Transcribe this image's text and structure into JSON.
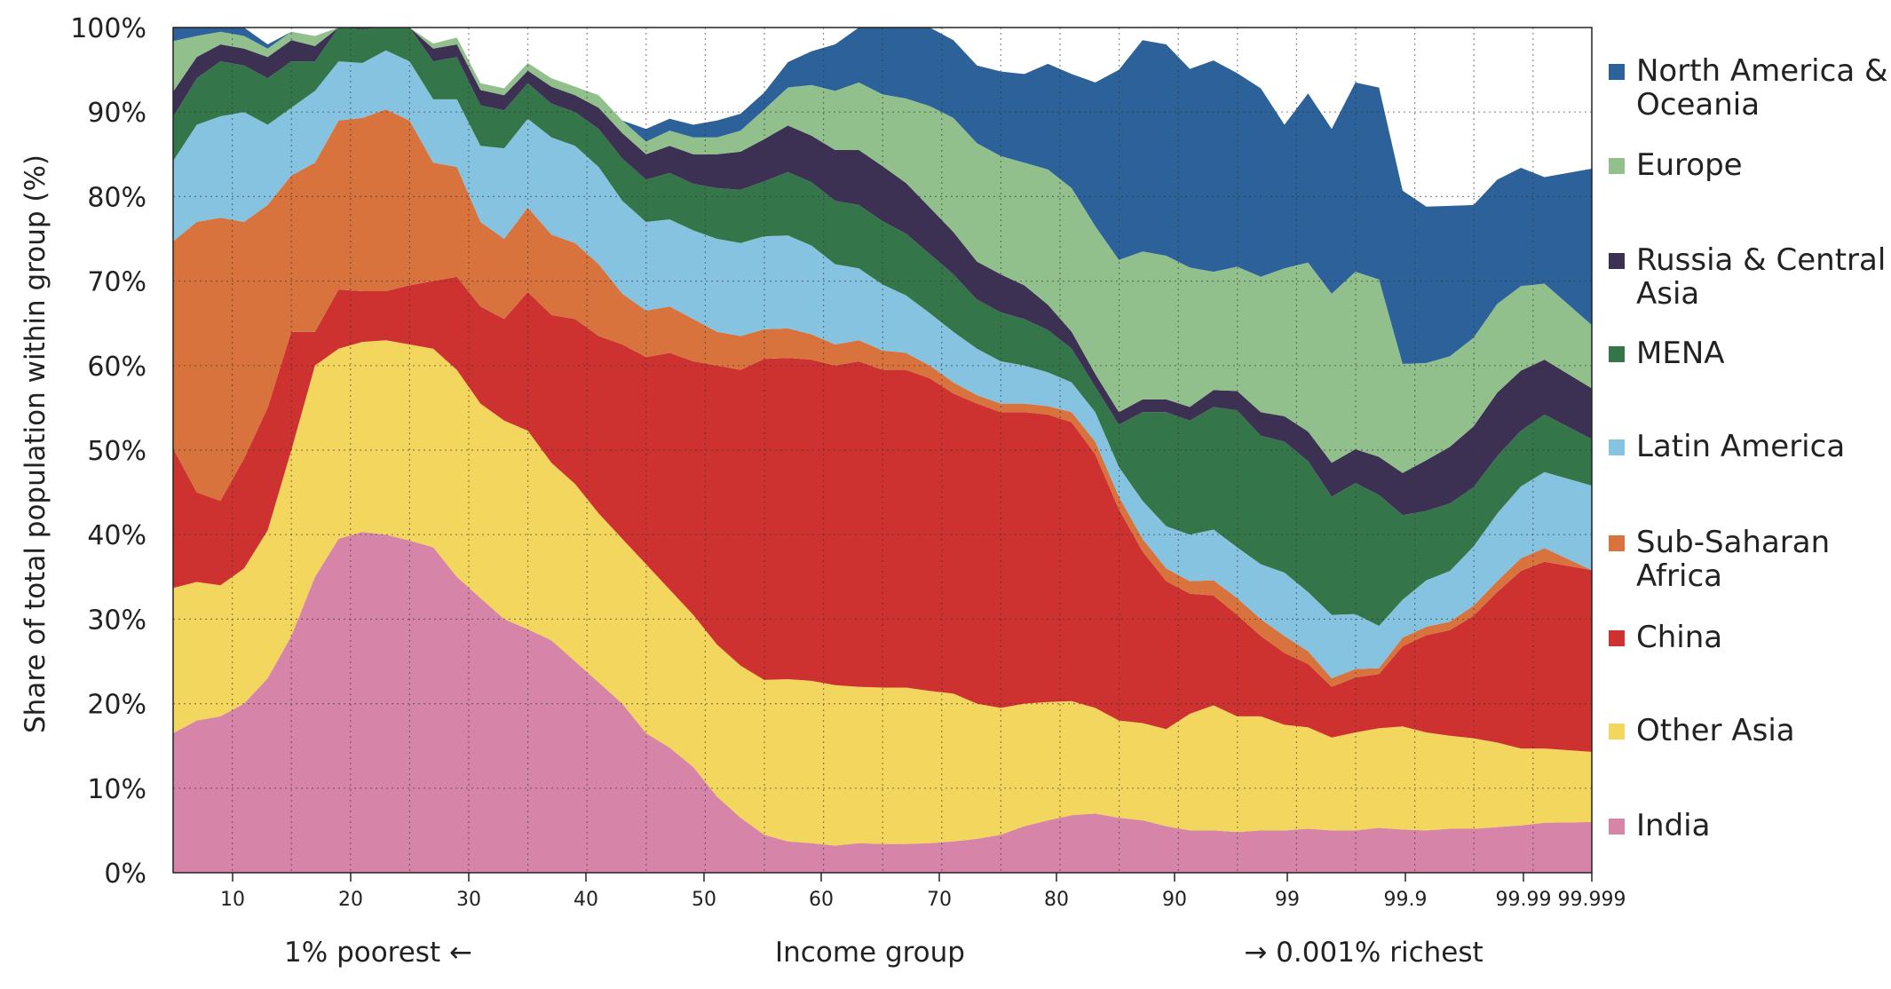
{
  "chart_data": {
    "type": "area",
    "stacked": true,
    "ylabel": "Share of total population within group (%)",
    "xlabel": "Income group",
    "x_left_note": "1% poorest ←",
    "x_right_note": "→ 0.001% richest",
    "ylim": [
      0,
      100
    ],
    "y_ticks": [
      "0%",
      "10%",
      "20%",
      "30%",
      "40%",
      "50%",
      "60%",
      "70%",
      "80%",
      "90%",
      "100%"
    ],
    "x_tick_labels": [
      "10",
      "20",
      "30",
      "40",
      "50",
      "60",
      "70",
      "80",
      "90",
      "99",
      "99.9",
      "99.99",
      "99.999"
    ],
    "grid": true,
    "legend_position": "right",
    "x_index": [
      5,
      7,
      9,
      11,
      13,
      15,
      17,
      19,
      21,
      23,
      25,
      27,
      29,
      31,
      33,
      35,
      37,
      39,
      41,
      43,
      45,
      47,
      49,
      51,
      53,
      55,
      57,
      59,
      61,
      63,
      65,
      67,
      69,
      71,
      73,
      75,
      77,
      79,
      81,
      83,
      85,
      87,
      89,
      91,
      93,
      95,
      97,
      99,
      101,
      103,
      105,
      107,
      109,
      111,
      113,
      115,
      117,
      119,
      121,
      125
    ],
    "series": [
      {
        "name": "India",
        "color": "#d685a9",
        "values": [
          16.5,
          18,
          18.5,
          20,
          23,
          28,
          35,
          39.5,
          40.3,
          40,
          39.3,
          38.5,
          35,
          32.5,
          30,
          28.8,
          27.5,
          25,
          22.5,
          20,
          16.5,
          14.8,
          12.5,
          9,
          6.5,
          4.5,
          3.7,
          3.5,
          3.2,
          3.5,
          3.4,
          3.4,
          3.5,
          3.7,
          4,
          4.5,
          5.5,
          6.2,
          6.8,
          7,
          6.5,
          6.2,
          5.5,
          5,
          5,
          4.8,
          5,
          5,
          5.2,
          5,
          5,
          5.3,
          5.1,
          5,
          5.2,
          5.2,
          5.4,
          5.6,
          5.9,
          6
        ]
      },
      {
        "name": "Other Asia",
        "color": "#f3d65d",
        "values": [
          17.2,
          16.4,
          15.5,
          16,
          17.5,
          22,
          25,
          22.5,
          22.5,
          23,
          23.2,
          23.5,
          24.5,
          23,
          23.5,
          23.5,
          21,
          21,
          20,
          19.5,
          20,
          18.7,
          18,
          18,
          18,
          18.3,
          19.2,
          19.2,
          19,
          18.5,
          18.5,
          18.5,
          18,
          17.5,
          16,
          15,
          14.5,
          14,
          13.5,
          12.5,
          11.5,
          11.5,
          11.5,
          13.8,
          14.8,
          13.7,
          13.5,
          12.5,
          12,
          11,
          11.6,
          11.8,
          12.2,
          11.6,
          11,
          10.7,
          10,
          9.1,
          8.8,
          8.3
        ]
      },
      {
        "name": "China",
        "color": "#cd3230",
        "values": [
          16.5,
          10.6,
          10,
          13,
          14.5,
          14,
          4,
          7,
          6,
          5.8,
          7,
          8,
          11,
          11.5,
          12,
          16.4,
          17.5,
          19.5,
          21,
          23,
          24.5,
          28,
          30,
          33,
          35,
          38,
          38,
          38,
          37.8,
          38.5,
          37.6,
          37.6,
          37,
          35.5,
          35.5,
          35,
          34.5,
          34,
          33,
          30,
          25,
          20.3,
          17.5,
          14.2,
          13,
          12,
          9.5,
          8.5,
          7.5,
          6,
          6.5,
          6.4,
          9.5,
          11.5,
          12.5,
          14.5,
          17.8,
          21,
          22.1,
          21.5
        ]
      },
      {
        "name": "Sub-Saharan Africa",
        "color": "#d8733d",
        "values": [
          24.5,
          32,
          33.5,
          28,
          24,
          18.5,
          20,
          20,
          20.5,
          21.5,
          19.5,
          14,
          13,
          10,
          9.5,
          10,
          9.5,
          9,
          8.5,
          6,
          5.5,
          5.5,
          5,
          4,
          4,
          3.5,
          3.5,
          3,
          2.5,
          2.5,
          2.3,
          2,
          1.5,
          1.3,
          1,
          1,
          1,
          1,
          1.2,
          1.5,
          1.5,
          1.5,
          1.5,
          1.5,
          1.8,
          2,
          2,
          2,
          1.5,
          1,
          1,
          0.7,
          1,
          1,
          1,
          1.2,
          1.3,
          1.5,
          1.6,
          0
        ]
      },
      {
        "name": "Latin America",
        "color": "#86c3e1",
        "values": [
          9.5,
          11.5,
          12,
          13,
          9.5,
          8,
          8.5,
          7,
          6.5,
          7,
          7,
          7.5,
          8,
          9,
          10.7,
          10.5,
          11.5,
          11.5,
          11.5,
          11,
          10.5,
          10.3,
          10.5,
          11,
          11,
          11,
          11,
          10.5,
          9.5,
          8.5,
          7.8,
          6.8,
          6.2,
          6,
          5.5,
          5,
          4.5,
          4,
          3.5,
          3.5,
          3.5,
          4.5,
          5,
          5.5,
          6,
          6,
          6.5,
          7.5,
          7,
          7.5,
          6.5,
          5,
          4.5,
          5.5,
          6,
          7,
          8,
          8.5,
          9,
          10
        ]
      },
      {
        "name": "MENA",
        "color": "#34764a",
        "values": [
          5.2,
          5.5,
          6.5,
          5.5,
          5.5,
          5.5,
          3.5,
          4,
          4,
          4.5,
          4.5,
          4.5,
          5,
          4.8,
          4.5,
          4.2,
          4,
          4,
          4.5,
          5,
          5,
          5.5,
          5.5,
          6,
          6.3,
          6.5,
          7.5,
          7.5,
          7.5,
          7.5,
          7.5,
          7.3,
          7,
          6.8,
          5.8,
          5.8,
          5.5,
          5,
          4,
          3,
          5,
          10.5,
          13.5,
          13.5,
          14.5,
          16.2,
          15.2,
          15.5,
          15.5,
          14,
          15.5,
          15.5,
          10,
          8.2,
          8,
          7,
          6.8,
          6.6,
          6.8,
          5.5
        ]
      },
      {
        "name": "Russia & Central Asia",
        "color": "#3d3153",
        "values": [
          3,
          2.5,
          2,
          2,
          2.5,
          2.5,
          1.8,
          1.8,
          1.8,
          1.8,
          1.8,
          1.5,
          1.5,
          1.8,
          1.8,
          1.5,
          2,
          2,
          2.5,
          3,
          3,
          3.2,
          3.5,
          4,
          4.5,
          5,
          5.5,
          5.5,
          6,
          6.5,
          6.5,
          6,
          5.5,
          5,
          4.5,
          4.5,
          4,
          3,
          2,
          1.5,
          1.5,
          1.5,
          1.5,
          1.6,
          2,
          2.3,
          2.8,
          3,
          3.5,
          4,
          4,
          4.5,
          5,
          6,
          6.7,
          7.2,
          7.5,
          7.1,
          6.5,
          6
        ]
      },
      {
        "name": "Europe",
        "color": "#92c08d",
        "values": [
          6,
          2.5,
          1.5,
          1.5,
          1,
          1,
          1.2,
          1.1,
          0.8,
          0.8,
          0.6,
          0.6,
          0.8,
          0.8,
          0.8,
          0.9,
          1,
          1,
          1.5,
          1.5,
          1.5,
          1.8,
          2,
          2,
          2.5,
          3.5,
          4.5,
          6,
          7,
          8,
          8.5,
          10,
          12,
          13.5,
          14,
          14,
          14.5,
          16,
          17,
          17.5,
          18,
          17.5,
          17,
          16.5,
          14,
          14.7,
          16,
          17.5,
          20,
          20,
          21,
          21,
          12.9,
          11.5,
          10.7,
          10.5,
          10.5,
          10,
          9,
          7.5
        ]
      },
      {
        "name": "North America & Oceania",
        "color": "#2c619a",
        "values": [
          1.6,
          1,
          0.5,
          1,
          0.5,
          0,
          0,
          0,
          0,
          0,
          0,
          0,
          0,
          0,
          0,
          0,
          0,
          0,
          0,
          0,
          1.5,
          1.4,
          1.5,
          2,
          2,
          2,
          3,
          4,
          5.5,
          7.5,
          8,
          8.8,
          9.3,
          9.2,
          9.2,
          10,
          10.5,
          12.5,
          13.5,
          17,
          22.5,
          25,
          25,
          23.5,
          25,
          22.9,
          22.3,
          17,
          20,
          19.5,
          22.4,
          22.7,
          20.5,
          18.5,
          17.8,
          15.7,
          14.7,
          14,
          12.6,
          18.5
        ]
      }
    ]
  }
}
